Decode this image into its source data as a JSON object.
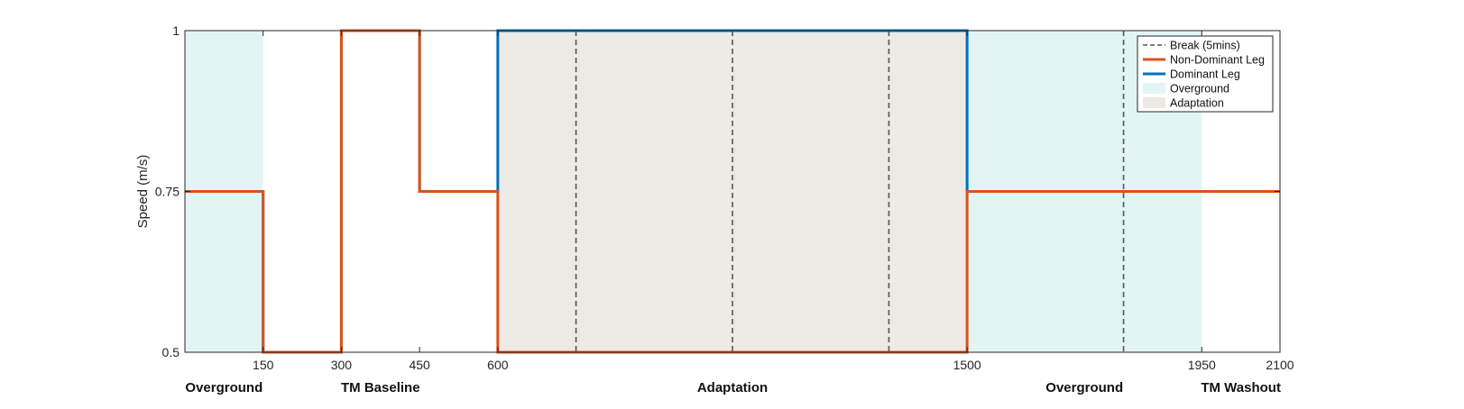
{
  "chart_data": {
    "type": "line",
    "ylabel": "Speed (m/s)",
    "xlabel": "",
    "title": "",
    "xlim": [
      0,
      2100
    ],
    "ylim": [
      0.5,
      1
    ],
    "xticks": [
      150,
      300,
      450,
      600,
      1500,
      1950,
      2100
    ],
    "xtick_labels": [
      "150",
      "300",
      "450",
      "600",
      "1500",
      "1950",
      "2100"
    ],
    "yticks": [
      0.5,
      0.75,
      1
    ],
    "ytick_labels": [
      "0.5",
      "0.75",
      "1"
    ],
    "grid": false,
    "legend_position": "top-right",
    "shaded_regions": [
      {
        "name": "Overground",
        "start": 0,
        "end": 150,
        "color": "#e3f4f4"
      },
      {
        "name": "Adaptation",
        "start": 600,
        "end": 1500,
        "color": "#ede9e4"
      },
      {
        "name": "Overground",
        "start": 1500,
        "end": 1950,
        "color": "#e3f4f4"
      }
    ],
    "breaks": {
      "name": "Break (5mins)",
      "x": [
        300,
        750,
        1050,
        1350,
        1800
      ],
      "color": "#555555"
    },
    "series": [
      {
        "name": "Dominant Leg",
        "color": "#0072bd",
        "x": [
          0,
          150,
          150,
          300,
          300,
          450,
          450,
          600,
          600,
          1500,
          1500,
          2100
        ],
        "y": [
          0.75,
          0.75,
          0.5,
          0.5,
          1,
          1,
          0.75,
          0.75,
          1,
          1,
          0.75,
          0.75
        ]
      },
      {
        "name": "Non-Dominant Leg",
        "color": "#d95319",
        "x": [
          0,
          150,
          150,
          300,
          300,
          450,
          450,
          600,
          600,
          1500,
          1500,
          2100
        ],
        "y": [
          0.75,
          0.75,
          0.5,
          0.5,
          1,
          1,
          0.75,
          0.75,
          0.5,
          0.5,
          0.75,
          0.75
        ]
      }
    ],
    "legend": [
      {
        "label": "Break (5mins)",
        "kind": "dash",
        "color": "#555555"
      },
      {
        "label": "Non-Dominant Leg",
        "kind": "line",
        "color": "#d95319"
      },
      {
        "label": "Dominant Leg",
        "kind": "line",
        "color": "#0072bd"
      },
      {
        "label": "Overground",
        "kind": "patch",
        "color": "#e3f4f4"
      },
      {
        "label": "Adaptation",
        "kind": "patch",
        "color": "#ede9e4"
      }
    ],
    "phase_labels": [
      {
        "text": "Overground",
        "x": 75
      },
      {
        "text": "TM Baseline",
        "x": 375
      },
      {
        "text": "Adaptation",
        "x": 1050
      },
      {
        "text": "Overground",
        "x": 1725
      },
      {
        "text": "TM Washout",
        "x": 2025
      }
    ]
  }
}
